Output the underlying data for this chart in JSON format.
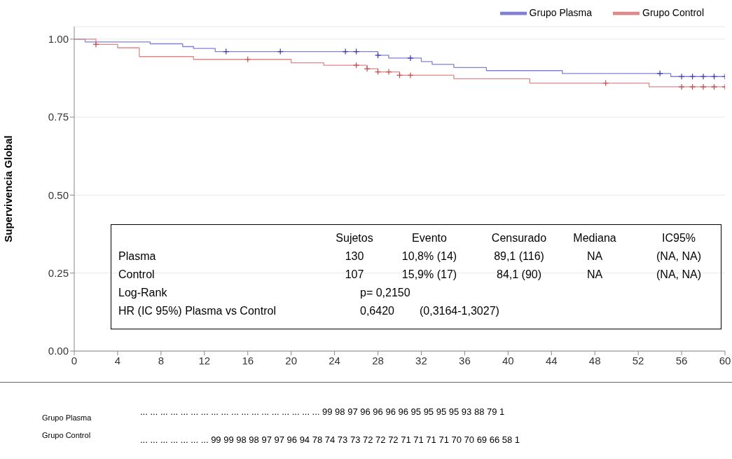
{
  "chart_data": {
    "type": "step",
    "ylabel": "Supervivencia Global",
    "xlim": [
      0,
      60
    ],
    "ylim": [
      0,
      1.04
    ],
    "xticks": [
      0,
      4,
      8,
      12,
      16,
      20,
      24,
      28,
      32,
      36,
      40,
      44,
      48,
      52,
      56,
      60
    ],
    "yticks": [
      {
        "value": 0,
        "label": "0.00"
      },
      {
        "value": 0.25,
        "label": "0.25"
      },
      {
        "value": 0.5,
        "label": "0.50"
      },
      {
        "value": 0.75,
        "label": "0.75"
      },
      {
        "value": 1,
        "label": "1.00"
      }
    ],
    "grid": "y",
    "legend": "top right",
    "series": [
      {
        "name": "Grupo Plasma",
        "color": "#8080d8",
        "x": [
          0,
          1,
          7,
          10,
          11,
          13,
          28,
          29,
          32,
          33,
          35,
          38,
          45,
          55,
          60
        ],
        "values": [
          1.0,
          0.991,
          0.985,
          0.976,
          0.97,
          0.96,
          0.948,
          0.939,
          0.928,
          0.919,
          0.909,
          0.899,
          0.89,
          0.88,
          0.88
        ]
      },
      {
        "name": "Grupo Control",
        "color": "#e08888",
        "x": [
          0,
          2,
          4,
          6,
          11,
          20,
          23,
          27,
          28,
          30,
          35,
          42,
          53,
          60
        ],
        "values": [
          1.0,
          0.983,
          0.972,
          0.944,
          0.935,
          0.924,
          0.916,
          0.905,
          0.895,
          0.884,
          0.873,
          0.859,
          0.847,
          0.847
        ]
      },
      {
        "type": "scatter",
        "marker": "cross",
        "color": "#3838a8",
        "x": [
          14,
          19,
          25,
          26,
          28,
          31,
          54,
          56,
          57,
          58,
          59,
          60
        ],
        "values": [
          0.96,
          0.96,
          0.96,
          0.96,
          0.948,
          0.939,
          0.89,
          0.88,
          0.88,
          0.88,
          0.88,
          0.88
        ]
      },
      {
        "type": "scatter",
        "marker": "cross",
        "color": "#c84848",
        "x": [
          2,
          16,
          26,
          27,
          28,
          29,
          30,
          31,
          49,
          56,
          57,
          58,
          59,
          60
        ],
        "values": [
          0.983,
          0.935,
          0.916,
          0.905,
          0.895,
          0.895,
          0.884,
          0.884,
          0.859,
          0.847,
          0.847,
          0.847,
          0.847,
          0.847
        ]
      }
    ],
    "annotations": [
      "Sujetos",
      "Evento",
      "Censurado",
      "Mediana",
      "IC95%",
      "Plasma",
      "130",
      "10,8% (14)",
      "89,1 (116)",
      "NA",
      "(NA, NA)",
      "Control",
      "107",
      "15,9% (17)",
      "84,1 (90)",
      "NA",
      "(NA, NA)",
      "Log-Rank",
      "p= 0,2150",
      "HR (IC 95%) Plasma vs Control",
      "0,6420",
      "(0,3164-1,3027)",
      "Grupo Plasma",
      "... ... ... ... ... ... ... ... ... ... ... ... ... ... ... ... ... ... 99 98 97 96 96 96 96 95 95 95 95 93 88 79 1",
      "Grupo Control",
      "... ... ... ... ... ... ... 99 99 98 98 97 97 96 94 78 74 73 73 72 72 72 71 71 71 71 70 70 69 66 58 1"
    ]
  }
}
